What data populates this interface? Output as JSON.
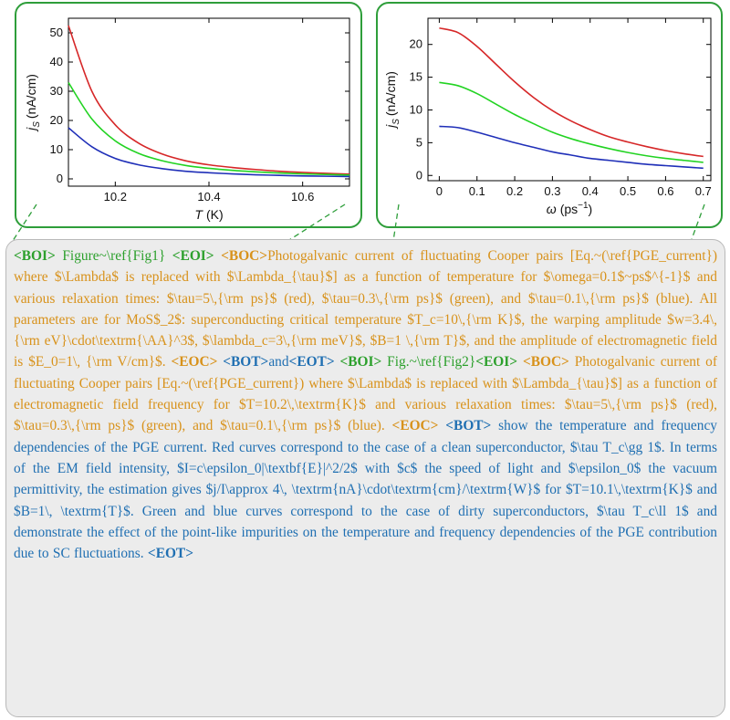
{
  "colors": {
    "frame": "#2e9e3a",
    "red": "#d62728",
    "green": "#22d322",
    "blue": "#1f2fb8",
    "tag_green": "#2ca02c",
    "tag_orange": "#d8921b",
    "tag_blue": "#1f6fb2"
  },
  "chart_data": [
    {
      "type": "line",
      "xlabel_italic": "T",
      "xlabel_unit": "(K)",
      "ylabel_italic": "j",
      "ylabel_sub": "S",
      "ylabel_unit": "(nA/cm)",
      "xlim": [
        10.1,
        10.7
      ],
      "ylim": [
        -2.5,
        55
      ],
      "xticks": [
        10.2,
        10.4,
        10.6
      ],
      "yticks": [
        0,
        10,
        20,
        30,
        40,
        50
      ],
      "grid": false,
      "series": [
        {
          "color": "#d62728",
          "x": [
            10.1,
            10.15,
            10.2,
            10.25,
            10.3,
            10.35,
            10.4,
            10.45,
            10.5,
            10.55,
            10.6,
            10.65,
            10.7
          ],
          "values": [
            52.5,
            30.0,
            18.5,
            12.2,
            8.5,
            6.2,
            4.8,
            3.9,
            3.2,
            2.6,
            2.2,
            1.9,
            1.6
          ]
        },
        {
          "color": "#22d322",
          "x": [
            10.1,
            10.15,
            10.2,
            10.25,
            10.3,
            10.35,
            10.4,
            10.45,
            10.5,
            10.55,
            10.6,
            10.65,
            10.7
          ],
          "values": [
            33.0,
            20.5,
            13.0,
            8.7,
            6.2,
            4.6,
            3.6,
            2.9,
            2.4,
            2.0,
            1.7,
            1.5,
            1.3
          ]
        },
        {
          "color": "#1f2fb8",
          "x": [
            10.1,
            10.15,
            10.2,
            10.25,
            10.3,
            10.35,
            10.4,
            10.45,
            10.5,
            10.55,
            10.6,
            10.65,
            10.7
          ],
          "values": [
            17.5,
            11.0,
            7.0,
            4.8,
            3.5,
            2.6,
            2.1,
            1.7,
            1.4,
            1.2,
            1.0,
            0.9,
            0.8
          ]
        }
      ]
    },
    {
      "type": "line",
      "xlabel_italic": "ω",
      "xlabel_unit": "(ps",
      "xlabel_sup": "−1",
      "xlabel_close": ")",
      "ylabel_italic": "j",
      "ylabel_sub": "S",
      "ylabel_unit": "(nA/cm)",
      "xlim": [
        -0.03,
        0.72
      ],
      "ylim": [
        -0.8,
        24
      ],
      "xticks": [
        0,
        0.1,
        0.2,
        0.3,
        0.4,
        0.5,
        0.6,
        0.7
      ],
      "yticks": [
        0,
        5,
        10,
        15,
        20
      ],
      "grid": false,
      "series": [
        {
          "color": "#d62728",
          "x": [
            0,
            0.05,
            0.1,
            0.15,
            0.2,
            0.25,
            0.3,
            0.35,
            0.4,
            0.45,
            0.5,
            0.55,
            0.6,
            0.65,
            0.7
          ],
          "values": [
            22.5,
            21.8,
            19.7,
            17.0,
            14.3,
            11.9,
            9.9,
            8.3,
            7.0,
            5.9,
            5.1,
            4.4,
            3.8,
            3.3,
            2.9
          ]
        },
        {
          "color": "#22d322",
          "x": [
            0,
            0.05,
            0.1,
            0.15,
            0.2,
            0.25,
            0.3,
            0.35,
            0.4,
            0.45,
            0.5,
            0.55,
            0.6,
            0.65,
            0.7
          ],
          "values": [
            14.2,
            13.7,
            12.5,
            10.9,
            9.3,
            7.9,
            6.6,
            5.6,
            4.8,
            4.1,
            3.5,
            3.0,
            2.6,
            2.3,
            2.0
          ]
        },
        {
          "color": "#1f2fb8",
          "x": [
            0,
            0.05,
            0.1,
            0.15,
            0.2,
            0.25,
            0.3,
            0.35,
            0.4,
            0.45,
            0.5,
            0.55,
            0.6,
            0.65,
            0.7
          ],
          "values": [
            7.5,
            7.3,
            6.6,
            5.8,
            5.0,
            4.3,
            3.6,
            3.1,
            2.6,
            2.3,
            2.0,
            1.7,
            1.5,
            1.3,
            1.1
          ]
        }
      ]
    }
  ],
  "caption": {
    "boi1": "<BOI>",
    "ref1": " Figure~\\ref{Fig1} ",
    "eoi1": "<EOI>",
    "boc1": "<BOC>",
    "cap1": "Photogalvanic current of fluctuating Cooper pairs [Eq.~(\\ref{PGE_current}) where $\\Lambda$ is replaced with $\\Lambda_{\\tau}$] as a function of temperature for $\\omega=0.1$~ps$^{-1}$ and various relaxation times: $\\tau=5\\,{\\rm ps}$ (red), $\\tau=0.3\\,{\\rm ps}$ (green), and $\\tau=0.1\\,{\\rm ps}$ (blue). All parameters are for MoS$_2$: superconducting critical temperature $T_c=10\\,{\\rm K}$, the warping amplitude $w=3.4\\,{\\rm eV}\\cdot\\textrm{\\AA}^3$, $\\lambda_c=3\\,{\\rm meV}$, $B=1 \\,{\\rm T}$, and the amplitude of electromagnetic field is $E_0=1\\, {\\rm V/cm}$. ",
    "eoc1": "<EOC>",
    "bot1": "<BOT>",
    "and": "and",
    "eot1": "<EOT>",
    "boi2": "<BOI>",
    "ref2": " Fig.~\\ref{Fig2}",
    "eoi2": "<EOI>",
    "boc2": "<BOC>",
    "cap2": " Photogalvanic current of fluctuating Cooper pairs [Eq.~(\\ref{PGE_current}) where $\\Lambda$ is replaced with $\\Lambda_{\\tau}$] as a function of electromagnetic field frequency for $T=10.2\\,\\textrm{K}$ and various relaxation times: $\\tau=5\\,{\\rm ps}$ (red), $\\tau=0.3\\,{\\rm ps}$ (green), and $\\tau=0.1\\,{\\rm ps}$ (blue). ",
    "eoc2": "<EOC>",
    "bot2": "<BOT>",
    "body": " show the temperature and frequency dependencies of the PGE current.  Red curves correspond to the case of a clean superconductor, $\\tau T_c\\gg 1$.  In terms of the EM field intensity, $I=c\\epsilon_0|\\textbf{E}|^2/2$ with $c$ the speed of light and $\\epsilon_0$ the vacuum permittivity, the estimation gives $j/I\\approx 4\\, \\textrm{nA}\\cdot\\textrm{cm}/\\textrm{W}$ for $T=10.1\\,\\textrm{K}$ and $B=1\\, \\textrm{T}$. Green and blue curves correspond to the case of dirty superconductors, $\\tau T_c\\ll 1$ and demonstrate the effect of the point-like impurities on the temperature and frequency dependencies of the PGE contribution due to SC fluctuations. ",
    "eot2": "<EOT>"
  }
}
